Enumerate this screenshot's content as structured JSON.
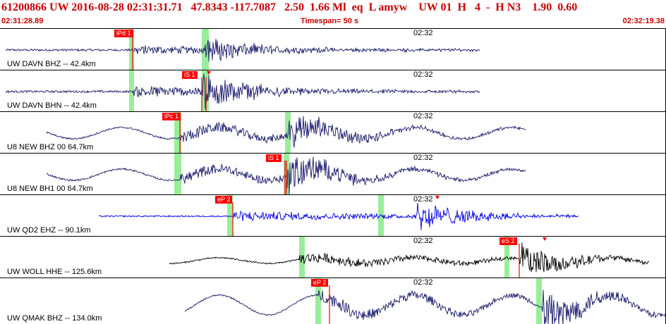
{
  "header": {
    "title": "61200866 UW 2016-08-28 02:31:31.71   47.8343 -117.7087   2.50  1.66 Ml  eq  L amyw    UW 01  H   4  -  H N3    1.90  0.60"
  },
  "subheader": {
    "start_time": "02:31:28.89",
    "timespan": "Timespan=  50 s",
    "end_time": "02:32:19.38"
  },
  "colors": {
    "header_text": "#cc0000",
    "trace_dark": "#1a1a6e",
    "trace_blue": "#0000ee",
    "trace_black": "#000000",
    "green_marker": "#99ee99",
    "pick_red": "#ff0000"
  },
  "traces": [
    {
      "label": "UW DAVN BHZ -- 42.4km",
      "time_mark": "02:32",
      "pick": "iPd 1"
    },
    {
      "label": "UW DAVN BHN -- 42.4km",
      "time_mark": "02:32",
      "pick": "iS 1"
    },
    {
      "label": "U8 NEW BHZ 00 64.7km",
      "time_mark": "02:32",
      "pick": "iPc 1"
    },
    {
      "label": "U8 NEW BH1 00 64.7km",
      "time_mark": "02:32",
      "pick": "iS 1"
    },
    {
      "label": "UW QD2 EHZ -- 90.1km",
      "time_mark": "02:32",
      "pick": "eP 2"
    },
    {
      "label": "UW WOLL HHE -- 125.6km",
      "time_mark": "02:32",
      "pick": "eS 2"
    },
    {
      "label": "UW QMAK BHZ -- 134.0km",
      "time_mark": "02:32",
      "pick": "eP 2"
    }
  ]
}
